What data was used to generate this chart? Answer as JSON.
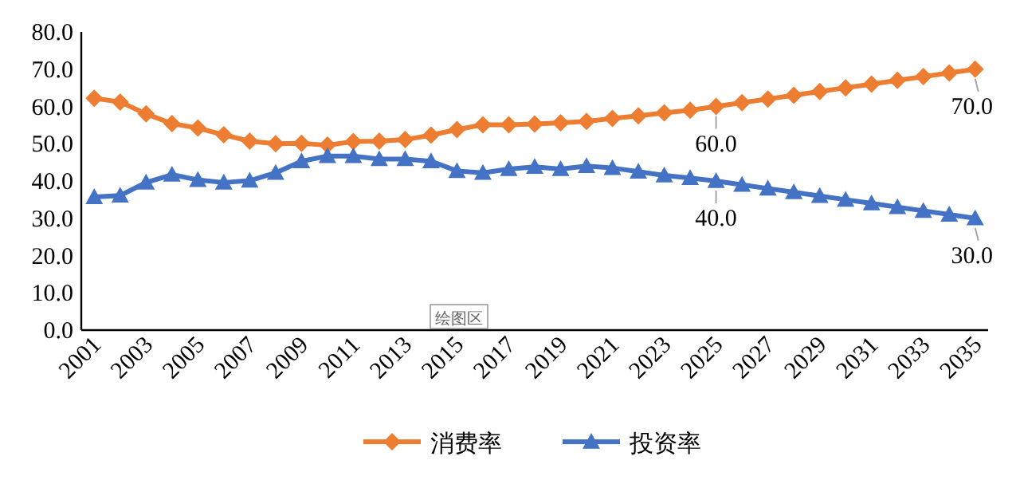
{
  "chart_data": {
    "type": "line",
    "categories": [
      "2001",
      null,
      "2003",
      null,
      "2005",
      null,
      "2007",
      null,
      "2009",
      null,
      "2011",
      null,
      "2013",
      null,
      "2015",
      null,
      "2017",
      null,
      "2019",
      null,
      "2021",
      null,
      "2023",
      null,
      "2025",
      null,
      "2027",
      null,
      "2029",
      null,
      "2031",
      null,
      "2033",
      null,
      "2035"
    ],
    "series": [
      {
        "name": "消费率",
        "color": "#ed7d31",
        "marker": "diamond",
        "values": [
          62.2,
          61.2,
          58.0,
          55.4,
          54.2,
          52.4,
          50.7,
          50.0,
          50.1,
          49.6,
          50.6,
          50.7,
          51.1,
          52.3,
          53.8,
          55.1,
          55.1,
          55.3,
          55.6,
          56.0,
          56.8,
          57.5,
          58.3,
          59.0,
          60.0,
          61.0,
          62.0,
          63.0,
          64.0,
          65.0,
          66.0,
          67.0,
          68.0,
          69.0,
          70.0
        ],
        "value_labels": [
          null,
          null,
          null,
          null,
          null,
          null,
          null,
          null,
          null,
          null,
          null,
          null,
          null,
          null,
          null,
          null,
          null,
          null,
          null,
          null,
          null,
          null,
          null,
          null,
          "60.0",
          null,
          null,
          null,
          null,
          null,
          null,
          null,
          null,
          null,
          "70.0"
        ]
      },
      {
        "name": "投资率",
        "color": "#4472c4",
        "marker": "triangle",
        "values": [
          35.7,
          36.1,
          39.6,
          41.7,
          40.3,
          39.6,
          40.1,
          42.2,
          45.3,
          46.7,
          46.7,
          45.9,
          45.9,
          45.3,
          42.7,
          42.2,
          43.2,
          43.8,
          43.2,
          44.0,
          43.5,
          42.5,
          41.5,
          40.8,
          40.0,
          39.0,
          38.0,
          37.0,
          36.0,
          35.0,
          34.0,
          33.0,
          32.0,
          31.0,
          30.0
        ],
        "value_labels": [
          null,
          null,
          null,
          null,
          null,
          null,
          null,
          null,
          null,
          null,
          null,
          null,
          null,
          null,
          null,
          null,
          null,
          null,
          null,
          null,
          null,
          null,
          null,
          null,
          "40.0",
          null,
          null,
          null,
          null,
          null,
          null,
          null,
          null,
          null,
          "30.0"
        ]
      }
    ],
    "ylim": [
      0,
      80
    ],
    "yticks": [
      {
        "value": 0,
        "label": "0.0"
      },
      {
        "value": 10,
        "label": "10.0"
      },
      {
        "value": 20,
        "label": "20.0"
      },
      {
        "value": 30,
        "label": "30.0"
      },
      {
        "value": 40,
        "label": "40.0"
      },
      {
        "value": 50,
        "label": "50.0"
      },
      {
        "value": 60,
        "label": "60.0"
      },
      {
        "value": 70,
        "label": "70.0"
      },
      {
        "value": 80,
        "label": "80.0"
      }
    ],
    "grid": false,
    "legend": "bottom",
    "line_style": "solid",
    "annotations": [
      "绘图区"
    ]
  }
}
